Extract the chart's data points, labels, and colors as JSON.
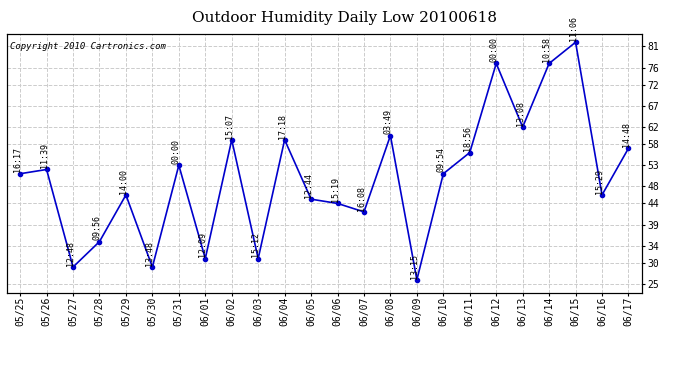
{
  "title": "Outdoor Humidity Daily Low 20100618",
  "copyright": "Copyright 2010 Cartronics.com",
  "x_labels": [
    "05/25",
    "05/26",
    "05/27",
    "05/28",
    "05/29",
    "05/30",
    "05/31",
    "06/01",
    "06/02",
    "06/03",
    "06/04",
    "06/05",
    "06/06",
    "06/07",
    "06/08",
    "06/09",
    "06/10",
    "06/11",
    "06/12",
    "06/13",
    "06/14",
    "06/15",
    "06/16",
    "06/17"
  ],
  "y_values": [
    51,
    52,
    29,
    35,
    46,
    29,
    53,
    31,
    59,
    31,
    59,
    45,
    44,
    42,
    60,
    26,
    51,
    56,
    77,
    62,
    77,
    82,
    46,
    57
  ],
  "time_labels": [
    "16:17",
    "11:39",
    "12:48",
    "09:56",
    "14:00",
    "13:48",
    "00:00",
    "12:09",
    "15:07",
    "15:12",
    "17:18",
    "12:44",
    "15:19",
    "16:08",
    "03:49",
    "13:15",
    "09:54",
    "18:56",
    "00:00",
    "13:08",
    "10:58",
    "11:06",
    "15:29",
    "14:48"
  ],
  "line_color": "#0000cc",
  "marker_color": "#0000cc",
  "background_color": "#ffffff",
  "grid_color": "#cccccc",
  "ylim": [
    23,
    84
  ],
  "yticks": [
    25,
    30,
    34,
    39,
    44,
    48,
    53,
    58,
    62,
    67,
    72,
    76,
    81
  ],
  "title_fontsize": 11,
  "copyright_fontsize": 6.5,
  "label_fontsize": 6,
  "tick_fontsize": 7
}
